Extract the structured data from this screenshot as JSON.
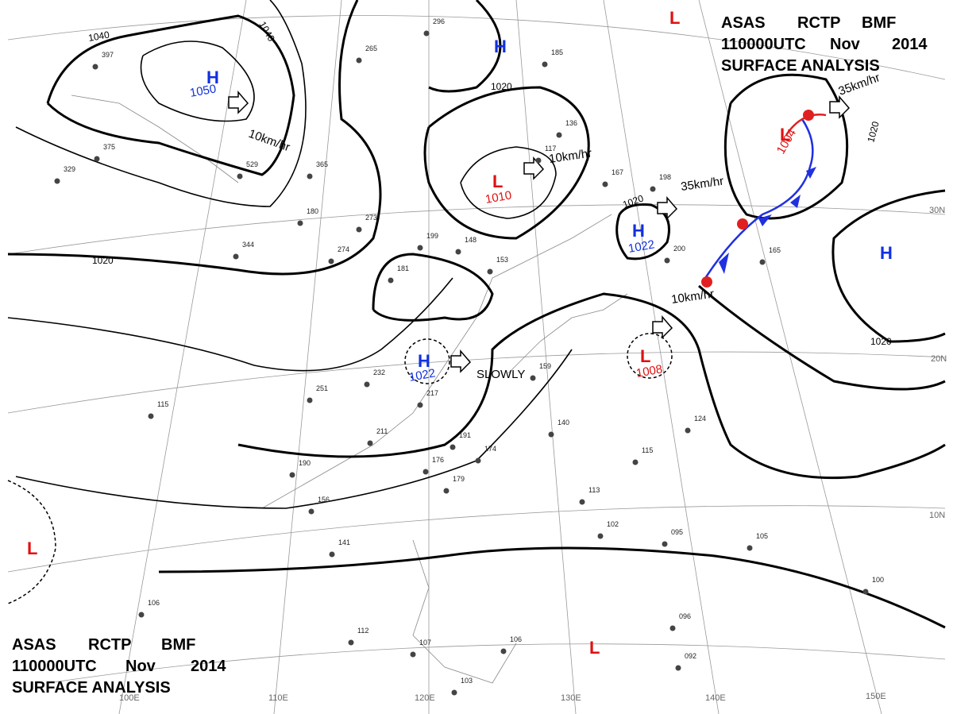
{
  "header": {
    "line1": [
      "ASAS",
      "RCTP",
      "BMF"
    ],
    "line2": [
      "110000UTC",
      "Nov",
      "2014"
    ],
    "line3": "SURFACE ANALYSIS"
  },
  "centers": [
    {
      "type": "H",
      "pressure": "1050"
    },
    {
      "type": "L",
      "pressure": "1010"
    },
    {
      "type": "H",
      "pressure": "1022"
    },
    {
      "type": "H",
      "pressure": "1022"
    },
    {
      "type": "L",
      "pressure": "1008"
    },
    {
      "type": "L",
      "pressure": "1004"
    },
    {
      "type": "H"
    },
    {
      "type": "H"
    },
    {
      "type": "L"
    },
    {
      "type": "L"
    },
    {
      "type": "L"
    }
  ],
  "motions": [
    "10km/hr",
    "10km/hr",
    "35km/hr",
    "10km/hr",
    "SLOWLY",
    "35km/hr"
  ],
  "isobars": [
    "1040",
    "1040",
    "1020",
    "1020",
    "1020",
    "1020",
    "1020"
  ],
  "longitudes": [
    "100E",
    "110E",
    "120E",
    "130E",
    "140E",
    "150E"
  ],
  "latitudes": [
    "30N",
    "20N",
    "10N"
  ],
  "stations": [
    "397",
    "375",
    "329",
    "529",
    "344",
    "180",
    "273",
    "274",
    "199",
    "148",
    "181",
    "153",
    "232",
    "251",
    "211",
    "217",
    "115",
    "190",
    "156",
    "141",
    "106",
    "112",
    "107",
    "103",
    "106",
    "092",
    "096",
    "100",
    "105",
    "095",
    "102",
    "113",
    "115",
    "124",
    "159",
    "140",
    "174",
    "179",
    "176",
    "191",
    "165",
    "200",
    "198",
    "167",
    "136",
    "117",
    "185",
    "296",
    "265",
    "365"
  ]
}
